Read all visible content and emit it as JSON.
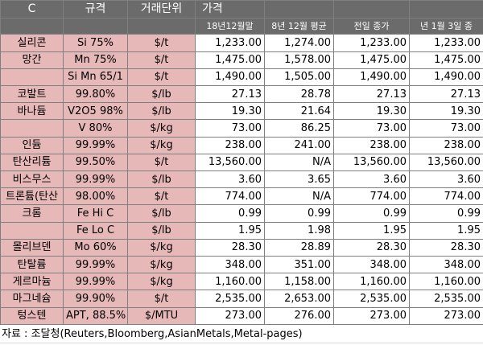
{
  "header": {
    "col_mineral": "C",
    "col_spec": "규격",
    "col_unit": "거래단위",
    "col_price": "가격",
    "sub_1": "18년12월말",
    "sub_2": "8년 12월 평균",
    "sub_3": "전일 종가",
    "sub_4": "년 1월 3일 종"
  },
  "rows": [
    {
      "mineral": "실리콘",
      "spec": "Si 75%",
      "unit": "$/t",
      "v1": "1,233.00",
      "v2": "1,274.00",
      "v3": "1,233.00",
      "v4": "1,233.00"
    },
    {
      "mineral": "망간",
      "spec": "Mn 75%",
      "unit": "$/t",
      "v1": "1,475.00",
      "v2": "1,578.00",
      "v3": "1,475.00",
      "v4": "1,475.00"
    },
    {
      "mineral": "",
      "spec": "Si Mn 65/1",
      "unit": "$/t",
      "v1": "1,490.00",
      "v2": "1,505.00",
      "v3": "1,490.00",
      "v4": "1,490.00"
    },
    {
      "mineral": "코발트",
      "spec": "99.80%",
      "unit": "$/lb",
      "v1": "27.13",
      "v2": "28.78",
      "v3": "27.13",
      "v4": "27.13"
    },
    {
      "mineral": "바나듐",
      "spec": "V2O5 98%",
      "unit": "$/lb",
      "v1": "19.30",
      "v2": "21.64",
      "v3": "19.30",
      "v4": "19.30"
    },
    {
      "mineral": "",
      "spec": "V 80%",
      "unit": "$/kg",
      "v1": "73.00",
      "v2": "86.25",
      "v3": "73.00",
      "v4": "73.00"
    },
    {
      "mineral": "인듐",
      "spec": "99.99%",
      "unit": "$/kg",
      "v1": "238.00",
      "v2": "241.00",
      "v3": "238.00",
      "v4": "238.00"
    },
    {
      "mineral": "탄산리튬",
      "spec": "99.50%",
      "unit": "$/t",
      "v1": "13,560.00",
      "v2": "N/A",
      "v3": "13,560.00",
      "v4": "13,560.00"
    },
    {
      "mineral": "비스무스",
      "spec": "99.99%",
      "unit": "$/lb",
      "v1": "3.60",
      "v2": "3.65",
      "v3": "3.60",
      "v4": "3.60"
    },
    {
      "mineral": "트론튬(탄산",
      "spec": "98.00%",
      "unit": "$/t",
      "v1": "774.00",
      "v2": "N/A",
      "v3": "774.00",
      "v4": "774.00"
    },
    {
      "mineral": "크롬",
      "spec": "Fe Hi C",
      "unit": "$/lb",
      "v1": "0.99",
      "v2": "0.99",
      "v3": "0.99",
      "v4": "0.99"
    },
    {
      "mineral": "",
      "spec": "Fe Lo C",
      "unit": "$/lb",
      "v1": "1.95",
      "v2": "1.98",
      "v3": "1.95",
      "v4": "1.95"
    },
    {
      "mineral": "몰리브덴",
      "spec": "Mo 60%",
      "unit": "$/kg",
      "v1": "28.30",
      "v2": "28.89",
      "v3": "28.30",
      "v4": "28.30"
    },
    {
      "mineral": "탄탈륨",
      "spec": "99.99%",
      "unit": "$/kg",
      "v1": "348.00",
      "v2": "351.00",
      "v3": "348.00",
      "v4": "348.00"
    },
    {
      "mineral": "게르마늄",
      "spec": "99.99%",
      "unit": "$/kg",
      "v1": "1,160.00",
      "v2": "1,158.00",
      "v3": "1,160.00",
      "v4": "1,160.00"
    },
    {
      "mineral": "마그네슘",
      "spec": "99.90%",
      "unit": "$/t",
      "v1": "2,535.00",
      "v2": "2,653.00",
      "v3": "2,535.00",
      "v4": "2,535.00"
    },
    {
      "mineral": "텅스텐",
      "spec": "APT, 88.5%",
      "unit": "$/MTU",
      "v1": "273.00",
      "v2": "276.00",
      "v3": "273.00",
      "v4": "273.00"
    }
  ],
  "footer": {
    "source": "자료 : 조달청(Reuters,Bloomberg,AsianMetals,Metal-pages)"
  }
}
